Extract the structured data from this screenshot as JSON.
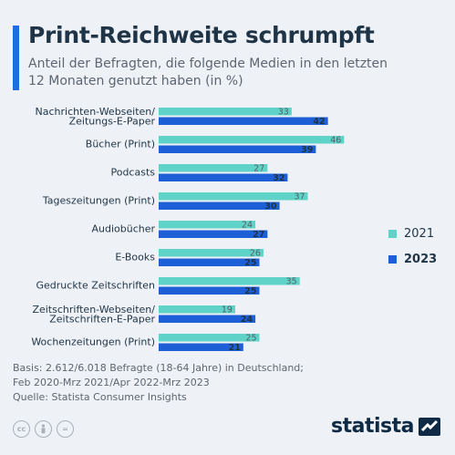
{
  "header": {
    "title": "Print-Reichweite schrumpft",
    "subtitle": "Anteil der Befragten, die folgende Medien in den letzten 12 Monaten genutzt haben (in %)"
  },
  "chart_data": {
    "type": "bar",
    "orientation": "horizontal",
    "categories": [
      "Nachrichten-Webseiten/ Zeitungs-E-Paper",
      "Bücher (Print)",
      "Podcasts",
      "Tageszeitungen (Print)",
      "Audiobücher",
      "E-Books",
      "Gedruckte Zeitschriften",
      "Zeitschriften-Webseiten/ Zeitschriften-E-Paper",
      "Wochenzeitungen (Print)"
    ],
    "series": [
      {
        "name": "2021",
        "color": "#5fd3c8",
        "values": [
          33,
          46,
          27,
          37,
          24,
          26,
          35,
          19,
          25
        ]
      },
      {
        "name": "2023",
        "color": "#1d5fd6",
        "values": [
          42,
          39,
          32,
          30,
          27,
          25,
          25,
          24,
          21
        ]
      }
    ],
    "xlim": [
      0,
      50
    ],
    "grid": false,
    "legend_position": "right"
  },
  "legend": {
    "items": [
      {
        "label": "2021",
        "color": "#5fd3c8"
      },
      {
        "label": "2023",
        "color": "#1d5fd6"
      }
    ]
  },
  "footer": {
    "line1": "Basis: 2.612/6.018 Befragte (18-64 Jahre) in Deutschland;",
    "line2": "Feb 2020-Mrz 2021/Apr 2022-Mrz 2023",
    "line3": "Quelle: Statista Consumer Insights",
    "brand": "statista",
    "license_icons": [
      "cc-icon",
      "by-icon",
      "equals-icon"
    ]
  }
}
